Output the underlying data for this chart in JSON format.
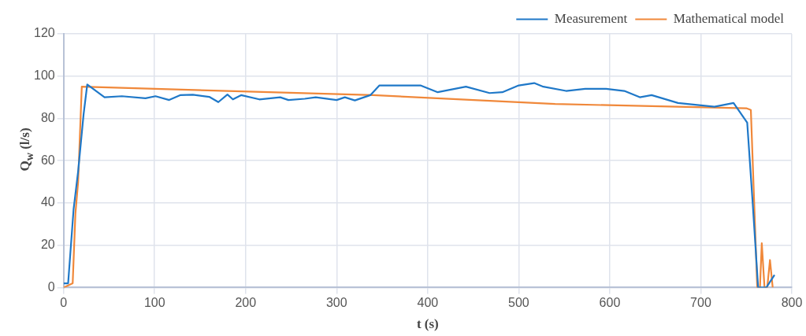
{
  "chart_data": {
    "type": "line",
    "xlabel": "t (s)",
    "ylabel": "Q$_{w}$ (l/s)",
    "xlim": [
      0,
      800
    ],
    "xticks": [
      0,
      100,
      200,
      300,
      400,
      500,
      600,
      700,
      800
    ],
    "ylim": [
      0,
      120
    ],
    "yticks": [
      0,
      20,
      40,
      60,
      80,
      100,
      120
    ],
    "grid": true,
    "legend": "top right",
    "marker": "none",
    "line_style": "solid",
    "series": [
      {
        "name": "Measurement",
        "color": "#1f78c8",
        "x": [
          0,
          5,
          11,
          16,
          22,
          26,
          45,
          64,
          90,
          101,
          116,
          128,
          142,
          160,
          170,
          180,
          186,
          195,
          215,
          238,
          247,
          265,
          277,
          300,
          309,
          320,
          337,
          347,
          392,
          411,
          442,
          468,
          482,
          500,
          517,
          527,
          552,
          573,
          596,
          616,
          633,
          646,
          675,
          715,
          736,
          751,
          757,
          763,
          772,
          781
        ],
        "values": [
          2,
          2,
          37,
          55,
          82,
          96,
          90,
          90.5,
          89.5,
          90.5,
          88.7,
          91,
          91.2,
          90.2,
          87.7,
          91.3,
          89,
          91,
          89,
          90,
          88.7,
          89.3,
          90,
          88.7,
          90,
          88.5,
          91,
          95.6,
          95.6,
          92.4,
          95,
          92,
          92.4,
          95.6,
          96.7,
          95,
          93,
          94,
          94,
          93,
          90,
          91,
          87.3,
          85.5,
          87.3,
          78,
          40,
          0,
          0,
          6
        ]
      },
      {
        "name": "Mathematical model",
        "color": "#f0883a",
        "x": [
          0,
          10,
          13,
          16,
          20,
          340,
          540,
          750,
          755,
          757,
          762,
          765,
          767,
          770,
          773,
          776,
          779
        ],
        "values": [
          0,
          2,
          35,
          50,
          95,
          91,
          86.8,
          84.8,
          84,
          60,
          0,
          0,
          21,
          0,
          0,
          13,
          0
        ]
      }
    ]
  }
}
